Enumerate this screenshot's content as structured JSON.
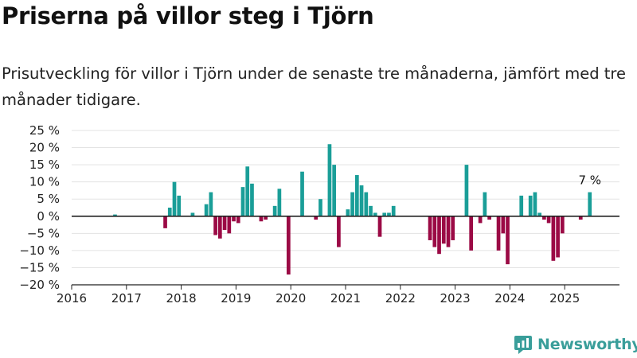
{
  "title": "Priserna på villor steg i Tjörn",
  "subtitle": "Prisutveckling för villor i Tjörn under de senaste tre månaderna, jämfört med tre månader tidigare.",
  "logo_text": "Newsworthy",
  "colors": {
    "positive": "#1a9e98",
    "negative": "#9b0a45",
    "grid": "#e3e3e3",
    "axis": "#222222",
    "logo": "#3a9e9a"
  },
  "chart_data": {
    "type": "bar",
    "title": "",
    "xlabel": "",
    "ylabel": "",
    "ylim": [
      -20,
      25
    ],
    "xlim": [
      "2016-01",
      "2025-12"
    ],
    "y_ticks": [
      {
        "value": 25,
        "label": "25 %"
      },
      {
        "value": 20,
        "label": "20 %"
      },
      {
        "value": 15,
        "label": "15 %"
      },
      {
        "value": 10,
        "label": "10 %"
      },
      {
        "value": 5,
        "label": "5 %"
      },
      {
        "value": 0,
        "label": "0 %"
      },
      {
        "value": -5,
        "label": "−5 %"
      },
      {
        "value": -10,
        "label": "−10 %"
      },
      {
        "value": -15,
        "label": "−15 %"
      },
      {
        "value": -20,
        "label": "−20 %"
      }
    ],
    "x_ticks": [
      "2016",
      "2017",
      "2018",
      "2019",
      "2020",
      "2021",
      "2022",
      "2023",
      "2024",
      "2025"
    ],
    "grid": true,
    "annotation": {
      "x": "2025-06",
      "label": "7 %"
    },
    "x": [
      "2016-10",
      "2017-09",
      "2017-10",
      "2017-11",
      "2017-12",
      "2018-03",
      "2018-06",
      "2018-07",
      "2018-08",
      "2018-09",
      "2018-10",
      "2018-11",
      "2018-12",
      "2019-01",
      "2019-02",
      "2019-03",
      "2019-04",
      "2019-06",
      "2019-07",
      "2019-09",
      "2019-10",
      "2019-12",
      "2020-03",
      "2020-06",
      "2020-07",
      "2020-09",
      "2020-10",
      "2020-11",
      "2021-01",
      "2021-02",
      "2021-03",
      "2021-04",
      "2021-05",
      "2021-06",
      "2021-07",
      "2021-08",
      "2021-09",
      "2021-10",
      "2021-11",
      "2022-07",
      "2022-08",
      "2022-09",
      "2022-10",
      "2022-11",
      "2022-12",
      "2023-03",
      "2023-04",
      "2023-06",
      "2023-07",
      "2023-08",
      "2023-10",
      "2023-11",
      "2023-12",
      "2024-03",
      "2024-05",
      "2024-06",
      "2024-07",
      "2024-08",
      "2024-09",
      "2024-10",
      "2024-11",
      "2024-12",
      "2025-04",
      "2025-06"
    ],
    "values": [
      0.5,
      -3.5,
      2.5,
      10,
      6,
      1,
      3.5,
      7,
      -5.5,
      -6.5,
      -4,
      -5,
      -1.5,
      -2,
      8.5,
      14.5,
      9.5,
      -1.5,
      -1,
      3,
      8,
      -17,
      13,
      -1,
      5,
      21,
      15,
      -9,
      2,
      7,
      12,
      9,
      7,
      3,
      1,
      -6,
      1,
      1,
      3,
      -7,
      -9,
      -11,
      -8,
      -9,
      -7,
      15,
      -10,
      -2,
      7,
      -1,
      -10,
      -5,
      -14,
      6,
      6,
      7,
      1,
      -1,
      -2,
      -13,
      -12,
      -5,
      -1,
      7
    ]
  }
}
